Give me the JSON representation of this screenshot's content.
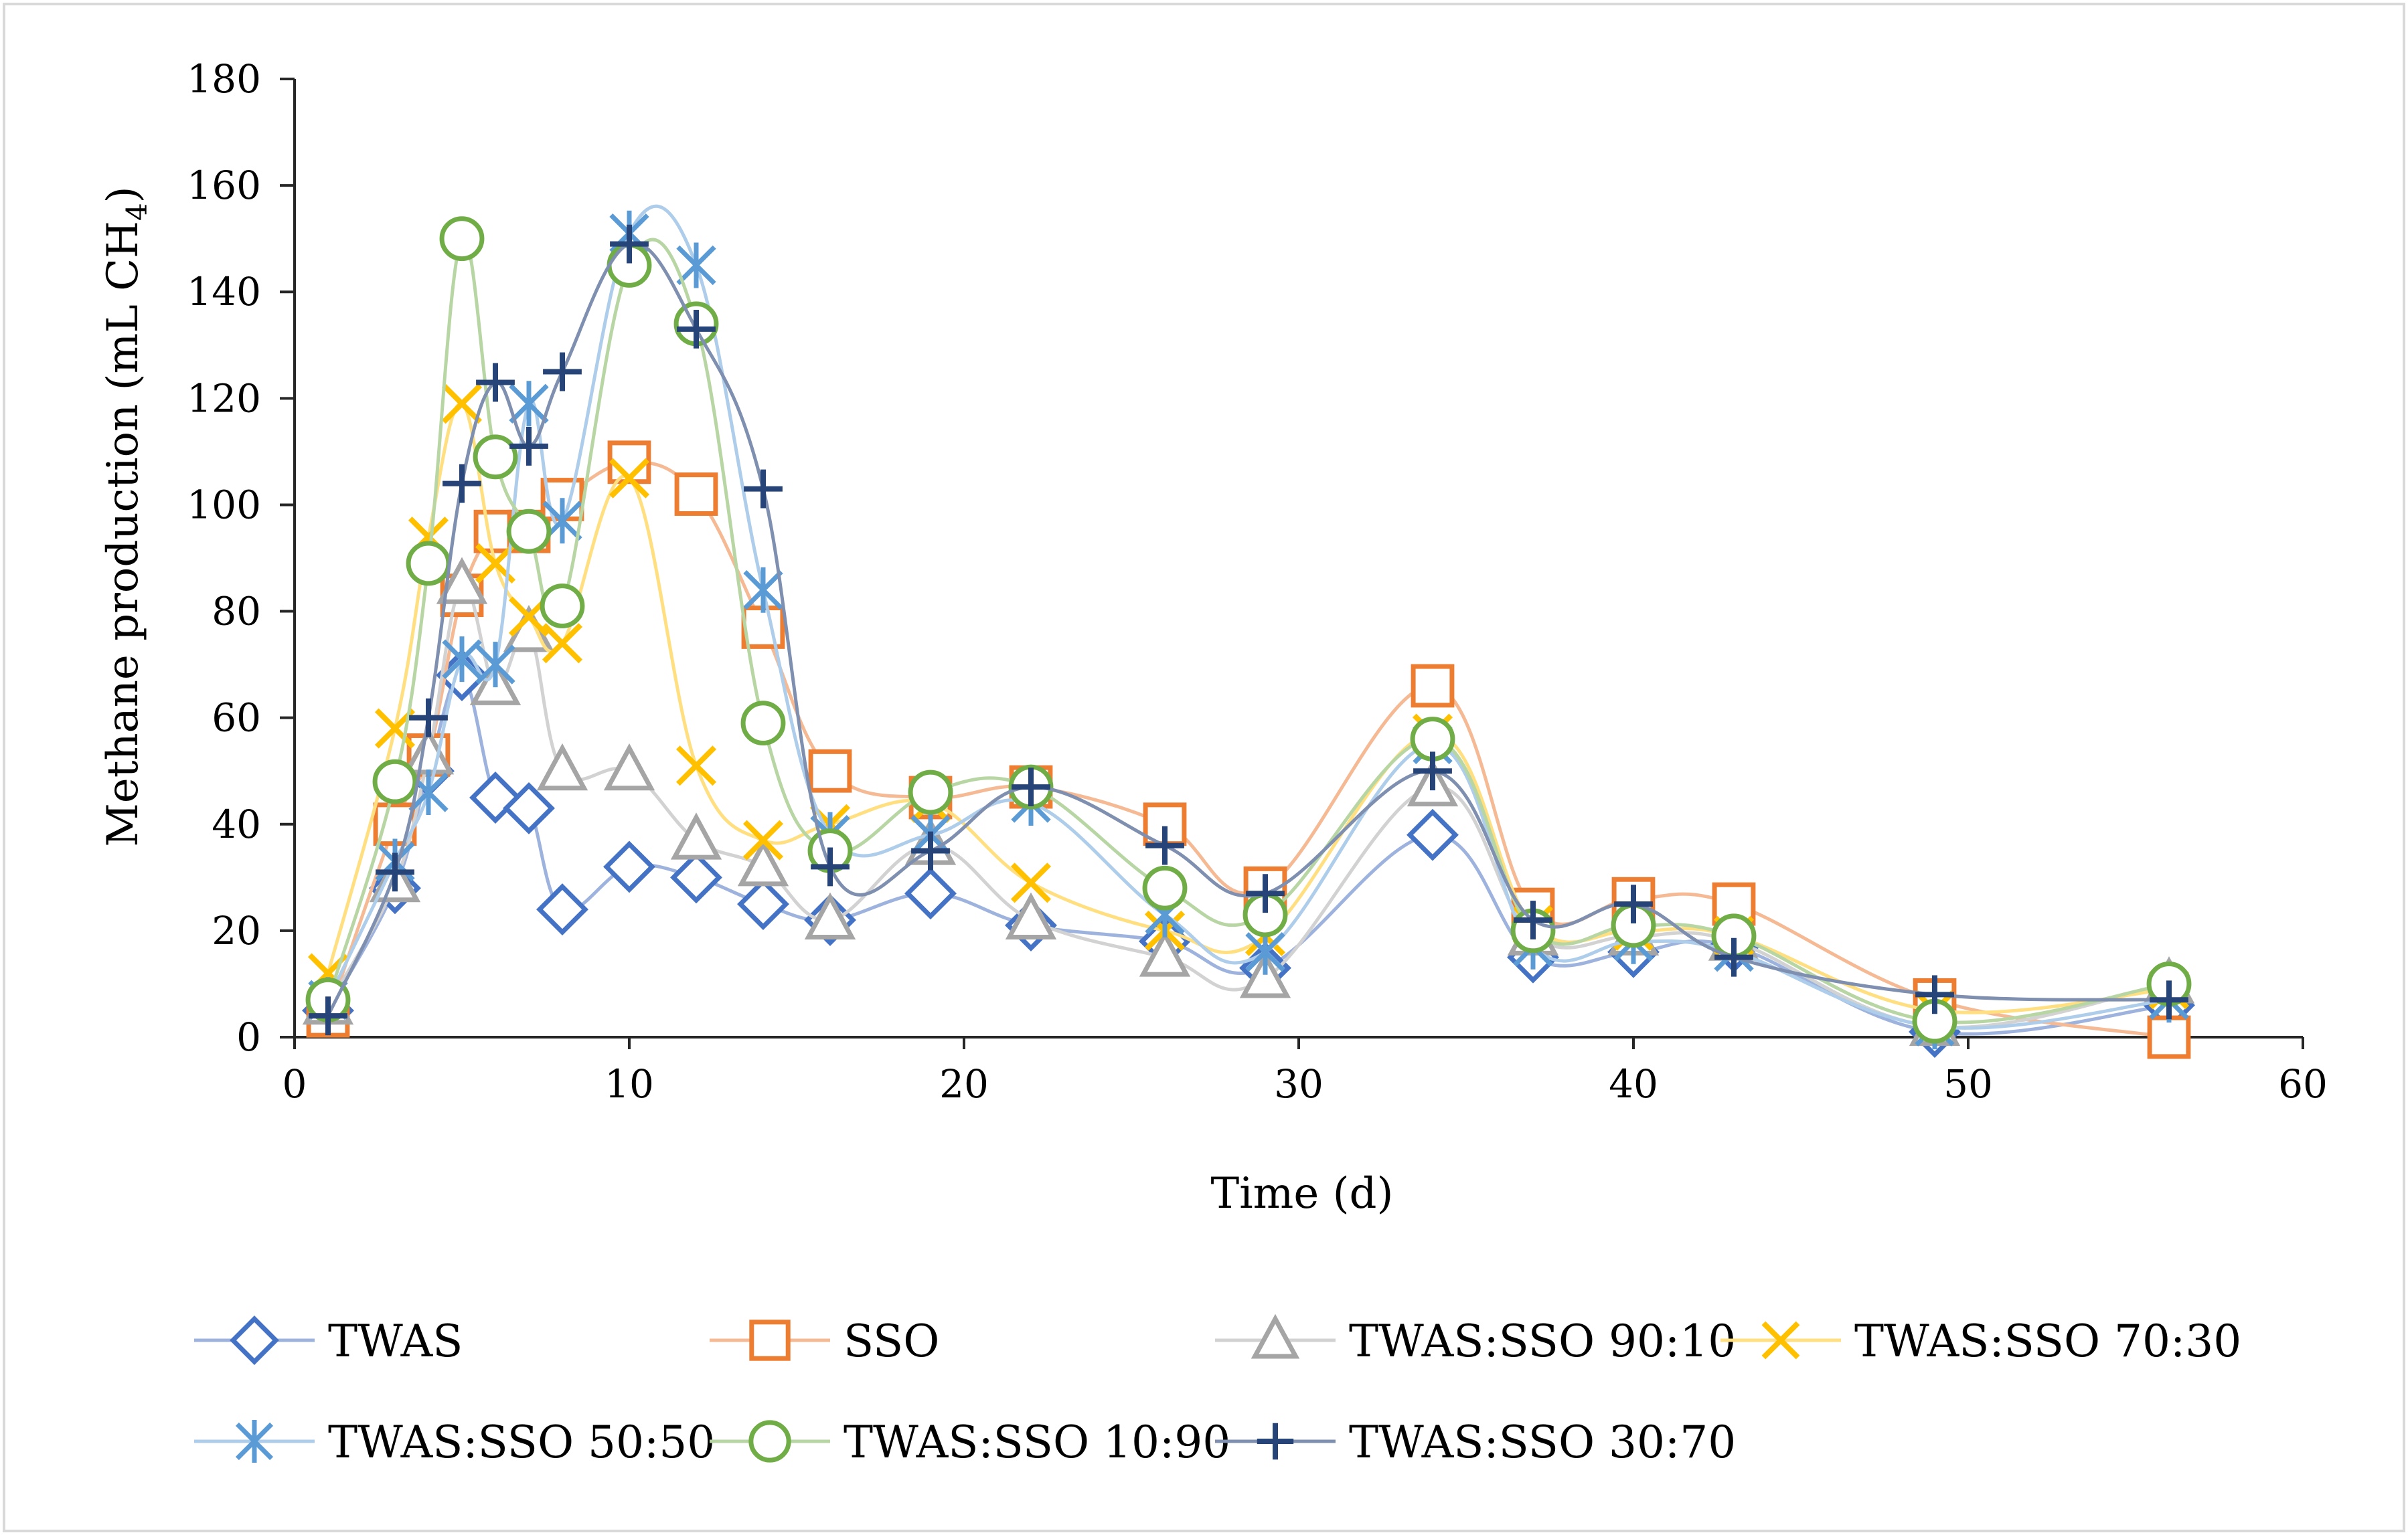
{
  "chart_data": {
    "type": "line",
    "title": "",
    "xlabel": "Time (d)",
    "ylabel_main": "Methane production (mL CH",
    "ylabel_sub": "4",
    "ylabel_close": ")",
    "xlim": [
      0,
      60
    ],
    "ylim": [
      0,
      180
    ],
    "xticks": [
      0,
      10,
      20,
      30,
      40,
      50,
      60
    ],
    "yticks": [
      0,
      20,
      40,
      60,
      80,
      100,
      120,
      140,
      160,
      180
    ],
    "xtick_labels": [
      "0",
      "10",
      "20",
      "30",
      "40",
      "50",
      "60"
    ],
    "ytick_labels": [
      "0",
      "20",
      "40",
      "60",
      "80",
      "100",
      "120",
      "140",
      "160",
      "180"
    ],
    "grid": false,
    "legend_position": "bottom",
    "series": [
      {
        "name": "TWAS",
        "color": "#4472C4",
        "line_color": "#9DB3DE",
        "marker": "diamond",
        "x": [
          1,
          3,
          4,
          5,
          6,
          7,
          8,
          10,
          12,
          14,
          16,
          19,
          22,
          26,
          29,
          34,
          37,
          40,
          43,
          49,
          56
        ],
        "y": [
          5,
          28,
          50,
          68,
          45,
          43,
          24,
          32,
          30,
          25,
          22,
          27,
          21,
          18,
          13,
          38,
          15,
          16,
          17,
          1,
          6
        ]
      },
      {
        "name": "SSO",
        "color": "#ED7D31",
        "line_color": "#F5B994",
        "marker": "square",
        "x": [
          1,
          3,
          4,
          5,
          6,
          7,
          8,
          10,
          12,
          14,
          16,
          19,
          22,
          26,
          29,
          34,
          37,
          40,
          43,
          49,
          56
        ],
        "y": [
          4,
          40,
          53,
          83,
          95,
          95,
          101,
          108,
          102,
          77,
          50,
          45,
          47,
          40,
          28,
          66,
          24,
          26,
          25,
          7,
          0
        ]
      },
      {
        "name": "TWAS:SSO 90:10",
        "color": "#A5A5A5",
        "line_color": "#D2D2D2",
        "marker": "triangle",
        "x": [
          1,
          3,
          4,
          5,
          6,
          7,
          8,
          10,
          12,
          14,
          16,
          19,
          22,
          26,
          29,
          34,
          37,
          40,
          43,
          49,
          56
        ],
        "y": [
          6,
          29,
          53,
          85,
          66,
          76,
          50,
          50,
          37,
          32,
          22,
          36,
          22,
          15,
          11,
          47,
          19,
          19,
          18,
          2,
          10
        ]
      },
      {
        "name": "TWAS:SSO 70:30",
        "color": "#FFC000",
        "line_color": "#FFDF80",
        "marker": "x",
        "x": [
          1,
          3,
          4,
          5,
          6,
          7,
          8,
          10,
          12,
          14,
          16,
          19,
          22,
          26,
          29,
          34,
          37,
          40,
          43,
          49,
          56
        ],
        "y": [
          12,
          58,
          94,
          119,
          89,
          79,
          74,
          105,
          51,
          37,
          40,
          44,
          29,
          20,
          19,
          57,
          21,
          20,
          19,
          5,
          9
        ]
      },
      {
        "name": "TWAS:SSO 50:50",
        "color": "#5B9BD5",
        "line_color": "#ADCDEA",
        "marker": "asterisk",
        "x": [
          1,
          3,
          4,
          5,
          6,
          7,
          8,
          10,
          12,
          14,
          16,
          19,
          22,
          26,
          29,
          34,
          37,
          40,
          43,
          49,
          56
        ],
        "y": [
          7,
          33,
          46,
          71,
          70,
          119,
          97,
          151,
          145,
          84,
          38,
          38,
          44,
          23,
          16,
          55,
          17,
          18,
          16,
          2,
          7
        ]
      },
      {
        "name": "TWAS:SSO 10:90",
        "color": "#70AD47",
        "line_color": "#B7D6A3",
        "marker": "circle",
        "x": [
          1,
          3,
          4,
          5,
          6,
          7,
          8,
          10,
          12,
          14,
          16,
          19,
          22,
          26,
          29,
          34,
          37,
          40,
          43,
          49,
          56
        ],
        "y": [
          7,
          48,
          89,
          150,
          109,
          95,
          81,
          145,
          134,
          59,
          35,
          46,
          47,
          28,
          23,
          56,
          20,
          21,
          19,
          3,
          10
        ]
      },
      {
        "name": "TWAS:SSO 30:70",
        "color": "#264478",
        "line_color": "#7E8FAF",
        "marker": "plus",
        "x": [
          1,
          3,
          4,
          5,
          6,
          7,
          8,
          10,
          12,
          14,
          16,
          19,
          22,
          26,
          29,
          34,
          37,
          40,
          43,
          49,
          56
        ],
        "y": [
          4,
          31,
          60,
          104,
          123,
          111,
          125,
          149,
          133,
          103,
          32,
          35,
          47,
          36,
          27,
          50,
          22,
          25,
          15,
          8,
          7
        ]
      }
    ]
  }
}
